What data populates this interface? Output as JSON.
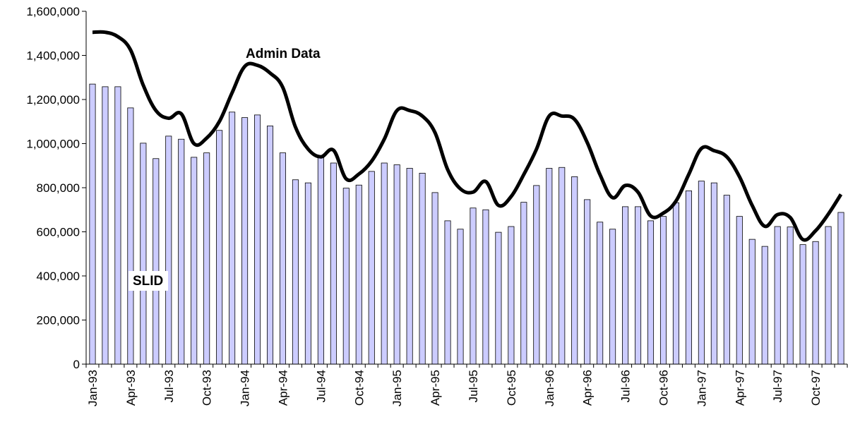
{
  "chart_data": {
    "type": "bar",
    "title": "",
    "xlabel": "",
    "ylabel": "",
    "ylim": [
      0,
      1600000
    ],
    "yticks": [
      0,
      200000,
      400000,
      600000,
      800000,
      1000000,
      1200000,
      1400000,
      1600000
    ],
    "ytick_labels": [
      "0",
      "200,000",
      "400,000",
      "600,000",
      "800,000",
      "1,000,000",
      "1,200,000",
      "1,400,000",
      "1,600,000"
    ],
    "grid": false,
    "x": [
      "Jan-93",
      "Feb-93",
      "Mar-93",
      "Apr-93",
      "May-93",
      "Jun-93",
      "Jul-93",
      "Aug-93",
      "Sep-93",
      "Oct-93",
      "Nov-93",
      "Dec-93",
      "Jan-94",
      "Feb-94",
      "Mar-94",
      "Apr-94",
      "May-94",
      "Jun-94",
      "Jul-94",
      "Aug-94",
      "Sep-94",
      "Oct-94",
      "Nov-94",
      "Dec-94",
      "Jan-95",
      "Feb-95",
      "Mar-95",
      "Apr-95",
      "May-95",
      "Jun-95",
      "Jul-95",
      "Aug-95",
      "Sep-95",
      "Oct-95",
      "Nov-95",
      "Dec-95",
      "Jan-96",
      "Feb-96",
      "Mar-96",
      "Apr-96",
      "May-96",
      "Jun-96",
      "Jul-96",
      "Aug-96",
      "Sep-96",
      "Oct-96",
      "Nov-96",
      "Dec-96",
      "Jan-97",
      "Feb-97",
      "Mar-97",
      "Apr-97",
      "May-97",
      "Jun-97",
      "Jul-97",
      "Aug-97",
      "Sep-97",
      "Oct-97",
      "Nov-97",
      "Dec-97"
    ],
    "x_tick_labels": [
      "Jan-93",
      "Apr-93",
      "Jul-93",
      "Oct-93",
      "Jan-94",
      "Apr-94",
      "Jul-94",
      "Oct-94",
      "Jan-95",
      "Apr-95",
      "Jul-95",
      "Oct-95",
      "Jan-96",
      "Apr-96",
      "Jul-96",
      "Oct-96",
      "Jan-97",
      "Apr-97",
      "Jul-97",
      "Oct-97"
    ],
    "series": [
      {
        "name": "SLID",
        "kind": "bar",
        "color": "#ccccff",
        "stroke": "#000000",
        "values": [
          1270000,
          1258000,
          1258000,
          1162000,
          1002000,
          932000,
          1034000,
          1020000,
          938000,
          958000,
          1060000,
          1143000,
          1118000,
          1130000,
          1080000,
          958000,
          836000,
          822000,
          940000,
          912000,
          798000,
          812000,
          874000,
          912000,
          904000,
          888000,
          866000,
          778000,
          650000,
          612000,
          708000,
          700000,
          598000,
          624000,
          734000,
          810000,
          888000,
          892000,
          850000,
          746000,
          644000,
          612000,
          714000,
          714000,
          650000,
          670000,
          732000,
          786000,
          830000,
          822000,
          766000,
          670000,
          566000,
          534000,
          624000,
          622000,
          542000,
          556000,
          624000,
          688000
        ]
      },
      {
        "name": "Admin Data",
        "kind": "line",
        "color": "#000000",
        "values": [
          1505000,
          1505000,
          1485000,
          1425000,
          1265000,
          1150000,
          1115000,
          1135000,
          1000000,
          1025000,
          1100000,
          1230000,
          1350000,
          1355000,
          1320000,
          1255000,
          1075000,
          975000,
          940000,
          970000,
          840000,
          862000,
          920000,
          1020000,
          1150000,
          1150000,
          1125000,
          1050000,
          882000,
          795000,
          780000,
          828000,
          720000,
          760000,
          860000,
          975000,
          1125000,
          1125000,
          1110000,
          1005000,
          860000,
          755000,
          810000,
          780000,
          672000,
          685000,
          740000,
          860000,
          978000,
          968000,
          940000,
          850000,
          720000,
          625000,
          678000,
          665000,
          565000,
          605000,
          680000,
          770000
        ]
      }
    ],
    "annotations": [
      {
        "text": "Admin Data",
        "x": "Mar-94",
        "y": 1400000
      },
      {
        "text": "SLID",
        "x": "Jun-93",
        "y": 400000
      }
    ]
  }
}
